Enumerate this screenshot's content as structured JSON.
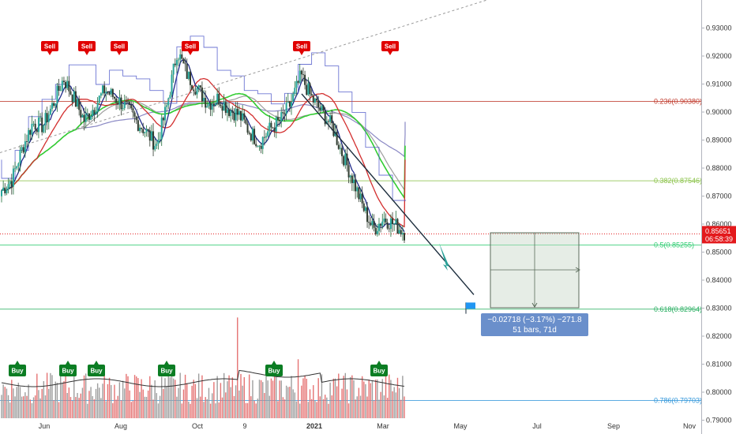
{
  "chart_data": {
    "type": "candlestick",
    "y_axis": {
      "min": 0.79,
      "max": 0.935,
      "ticks": [
        "0.79000",
        "0.80000",
        "0.81000",
        "0.82000",
        "0.83000",
        "0.84000",
        "0.85000",
        "0.86000",
        "0.87000",
        "0.88000",
        "0.89000",
        "0.90000",
        "0.91000",
        "0.92000",
        "0.93000"
      ]
    },
    "x_axis": {
      "ticks": [
        "Jun",
        "Aug",
        "Oct",
        "9",
        "2021",
        "Mar",
        "May",
        "Jul",
        "Sep",
        "Nov"
      ]
    },
    "current_price": {
      "value": "0.85651",
      "countdown": "06:58:39",
      "color": "#e3191c"
    },
    "fib_levels": [
      {
        "label": "0.236(0.90380)",
        "value": 0.9038,
        "color": "#c0392b"
      },
      {
        "label": "0.382(0.87546)",
        "value": 0.87546,
        "color": "#8bc34a"
      },
      {
        "label": "0.5(0.85255)",
        "value": 0.85255,
        "color": "#2ecc71"
      },
      {
        "label": "0.618(0.82964)",
        "value": 0.82964,
        "color": "#27ae60"
      },
      {
        "label": "0.786(0.79703)",
        "value": 0.79703,
        "color": "#3498db"
      }
    ],
    "close_series": [
      0.872,
      0.876,
      0.887,
      0.896,
      0.895,
      0.903,
      0.912,
      0.905,
      0.897,
      0.902,
      0.908,
      0.905,
      0.902,
      0.897,
      0.893,
      0.888,
      0.902,
      0.922,
      0.913,
      0.908,
      0.903,
      0.905,
      0.901,
      0.899,
      0.893,
      0.889,
      0.894,
      0.897,
      0.903,
      0.913,
      0.905,
      0.9,
      0.895,
      0.885,
      0.876,
      0.866,
      0.858,
      0.862,
      0.86,
      0.857
    ],
    "sell_signals": [
      {
        "label": "Sell",
        "bar": 7
      },
      {
        "label": "Sell",
        "bar": 10
      },
      {
        "label": "Sell",
        "bar": 13
      },
      {
        "label": "Sell",
        "bar": 23
      },
      {
        "label": "Sell",
        "bar": 37
      },
      {
        "label": "Sell",
        "bar": 48
      }
    ],
    "buy_signals": [
      {
        "label": "Buy",
        "bar": 2
      },
      {
        "label": "Buy",
        "bar": 8
      },
      {
        "label": "Buy",
        "bar": 11
      },
      {
        "label": "Buy",
        "bar": 20
      },
      {
        "label": "Buy",
        "bar": 34
      },
      {
        "label": "Buy",
        "bar": 47
      }
    ],
    "measurement": {
      "line1": "−0.02718 (−3.17%) −271.8",
      "line2": "51 bars, 71d"
    },
    "colors": {
      "up": "#26a69a",
      "up_wick": "#1e6b38",
      "down": "#2f3b2f",
      "ma_fast": "#1f2a8a",
      "ma_red": "#d32f2f",
      "ma_green": "#32cd32",
      "ma_gray": "#9e9e9e",
      "ma_purple": "#8a88c4",
      "vol_up": "#9e9e9e",
      "vol_down": "#e57373"
    }
  }
}
